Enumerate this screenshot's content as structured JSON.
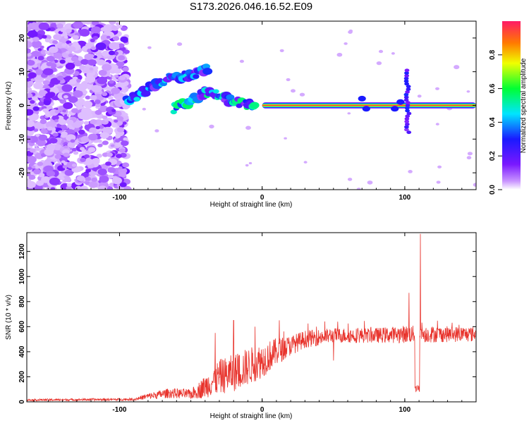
{
  "title": "S173.2026.046.16.52.E09",
  "colors": {
    "snr_line": "#e8332c",
    "tone_core": "#ff2a2a",
    "frame": "#000000"
  },
  "chart_data": [
    {
      "type": "heatmap",
      "name": "spectrogram",
      "xlabel": "Height of straight line (km)",
      "ylabel": "Frequency (Hz)",
      "xlim": [
        -165,
        150
      ],
      "ylim": [
        -25,
        25
      ],
      "xticks": [
        -100,
        0,
        100
      ],
      "yticks": [
        -20,
        -10,
        0,
        10,
        20
      ],
      "colorbar": {
        "label": "Normalized spectral amplitude",
        "range": [
          0,
          1
        ],
        "ticks": [
          "0.0",
          "0.2",
          "0.4",
          "0.6",
          "0.8"
        ],
        "colormap": "rainbow (magenta-blue-cyan-green-yellow-red)"
      },
      "features": [
        {
          "description": "diffuse noise",
          "x_range": [
            -165,
            -95
          ],
          "f_range": [
            -25,
            25
          ],
          "amplitude": 0.05
        },
        {
          "description": "rising trace",
          "points": [
            [
              -95,
              1
            ],
            [
              -80,
              5
            ],
            [
              -65,
              8
            ],
            [
              -50,
              9
            ],
            [
              -38,
              11
            ]
          ],
          "amplitude": 0.3
        },
        {
          "description": "lower branch",
          "points": [
            [
              -62,
              -1
            ],
            [
              -52,
              1
            ],
            [
              -40,
              4
            ],
            [
              -30,
              3
            ],
            [
              -20,
              1
            ],
            [
              -5,
              0
            ]
          ],
          "amplitude": 0.35
        },
        {
          "description": "carrier tone",
          "x_range": [
            0,
            150
          ],
          "frequency": 0,
          "amplitude": 0.95
        },
        {
          "description": "vertical spike",
          "x": 102,
          "f_range": [
            -8,
            11
          ],
          "amplitude": 0.25
        }
      ]
    },
    {
      "type": "line",
      "name": "snr",
      "xlabel": "Height of straight line (km)",
      "ylabel": "SNR (10 * v/v)",
      "xlim": [
        -165,
        150
      ],
      "ylim": [
        0,
        1350
      ],
      "xticks": [
        -100,
        0,
        100
      ],
      "yticks": [
        0,
        200,
        400,
        600,
        800,
        1000,
        1200
      ],
      "envelope": [
        {
          "x": -165,
          "mean": 15,
          "noise": 8
        },
        {
          "x": -90,
          "mean": 20,
          "noise": 10
        },
        {
          "x": -80,
          "mean": 45,
          "noise": 25
        },
        {
          "x": -65,
          "mean": 70,
          "noise": 40
        },
        {
          "x": -50,
          "mean": 60,
          "noise": 40
        },
        {
          "x": -40,
          "mean": 120,
          "noise": 90
        },
        {
          "x": -30,
          "mean": 200,
          "noise": 140
        },
        {
          "x": -20,
          "mean": 230,
          "noise": 150
        },
        {
          "x": -10,
          "mean": 280,
          "noise": 150
        },
        {
          "x": 0,
          "mean": 330,
          "noise": 140
        },
        {
          "x": 10,
          "mean": 400,
          "noise": 110
        },
        {
          "x": 20,
          "mean": 450,
          "noise": 80
        },
        {
          "x": 30,
          "mean": 500,
          "noise": 70
        },
        {
          "x": 50,
          "mean": 530,
          "noise": 60
        },
        {
          "x": 80,
          "mean": 530,
          "noise": 60
        },
        {
          "x": 100,
          "mean": 540,
          "noise": 70
        },
        {
          "x": 150,
          "mean": 540,
          "noise": 60
        }
      ],
      "events": [
        {
          "x": -33,
          "value": 550
        },
        {
          "x": -20,
          "value": 650
        },
        {
          "x": -5,
          "value": 600
        },
        {
          "x": 12,
          "value": 650
        },
        {
          "x": 38,
          "value": 600
        },
        {
          "x": 50,
          "value": 330
        },
        {
          "x": 103,
          "value": 870
        },
        {
          "x": 108,
          "value": 75
        },
        {
          "x": 111,
          "value": 1340
        }
      ]
    }
  ]
}
